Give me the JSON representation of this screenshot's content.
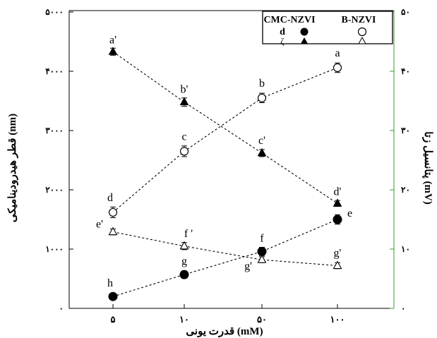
{
  "chart_data": {
    "type": "scatter",
    "categories": [
      "۵",
      "۱۰",
      "۵۰",
      "۱۰۰"
    ],
    "xlabel": "قدرت یونی (mM)",
    "ylabel": "قطر هیدرودینامیکی (nm)",
    "ylabel_right": "پتانسیل زتا (mV)",
    "ylim": [
      0,
      5000
    ],
    "ylim_right": [
      0,
      50
    ],
    "y_ticks": [
      "۰",
      "۱۰۰۰",
      "۲۰۰۰",
      "۳۰۰۰",
      "۴۰۰۰",
      "۵۰۰۰"
    ],
    "y_ticks_right": [
      "۰",
      "۱۰",
      "۲۰",
      "۳۰",
      "۴۰",
      "۵۰"
    ],
    "right_axis_color": "#3a9a3a",
    "grid": false,
    "legend": {
      "placement": "top-right",
      "col_headers": [
        "CMC-NZVI",
        "B-NZVI"
      ],
      "row_labels": [
        "d",
        "ζ"
      ]
    },
    "series": [
      {
        "group": "B-NZVI",
        "measure": "d",
        "axis": "left",
        "marker": "circle-open",
        "values": [
          1620,
          2650,
          3550,
          4060
        ],
        "errors": [
          90,
          90,
          80,
          80
        ],
        "labels": [
          "d",
          "c",
          "b",
          "a"
        ]
      },
      {
        "group": "CMC-NZVI",
        "measure": "d",
        "axis": "left",
        "marker": "circle-filled",
        "values": [
          200,
          570,
          960,
          1500
        ],
        "errors": [
          50,
          60,
          70,
          80
        ],
        "labels": [
          "h",
          "g",
          "f",
          "e"
        ]
      },
      {
        "group": "CMC-NZVI",
        "measure": "ζ",
        "axis": "right",
        "marker": "triangle-filled",
        "values": [
          43.3,
          34.8,
          26.2,
          17.7
        ],
        "errors": [
          0.6,
          0.7,
          0.6,
          0.5
        ],
        "labels": [
          "a'",
          "b'",
          "c'",
          "d'"
        ]
      },
      {
        "group": "B-NZVI",
        "measure": "ζ",
        "axis": "right",
        "marker": "triangle-open",
        "values": [
          12.9,
          10.5,
          8.2,
          7.2
        ],
        "errors": [
          0.5,
          0.6,
          0.5,
          0.5
        ],
        "labels": [
          "e'",
          "f '",
          "g'",
          "g'"
        ]
      }
    ]
  }
}
